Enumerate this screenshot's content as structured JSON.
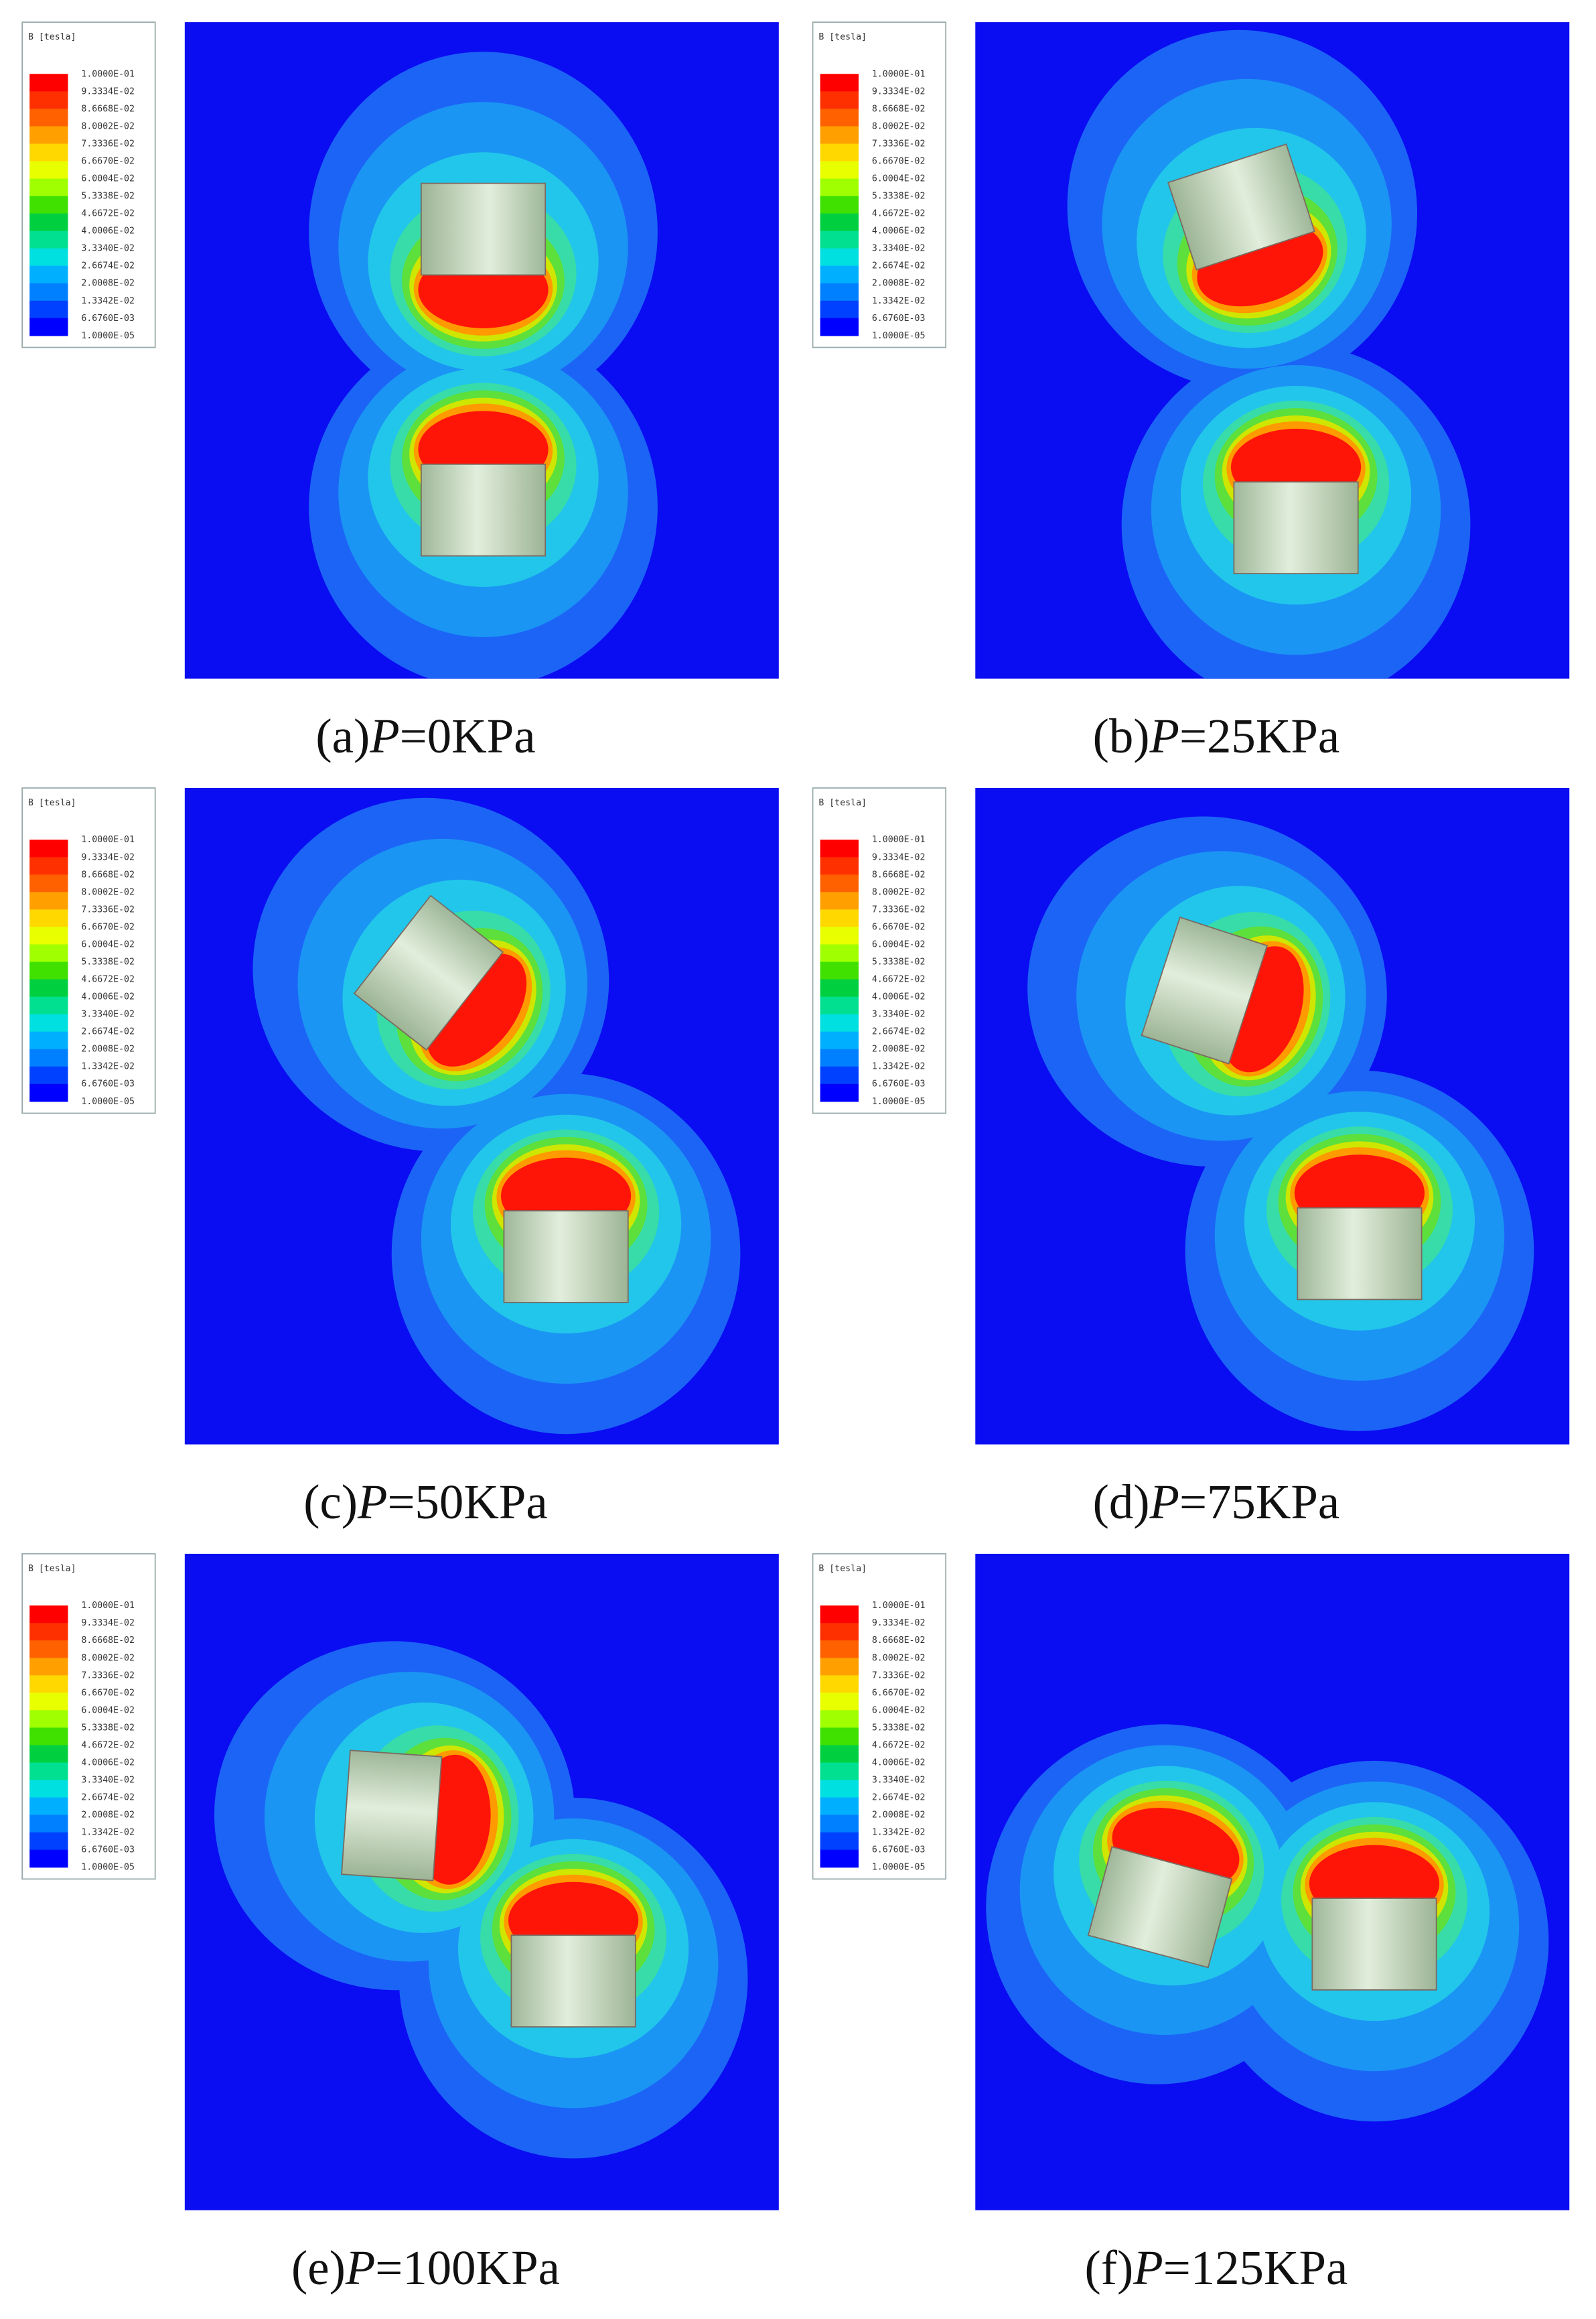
{
  "legend": {
    "title": "B [tesla]",
    "labels": [
      "1.0000E-01",
      "9.3334E-02",
      "8.6668E-02",
      "8.0002E-02",
      "7.3336E-02",
      "6.6670E-02",
      "6.0004E-02",
      "5.3338E-02",
      "4.6672E-02",
      "4.0006E-02",
      "3.3340E-02",
      "2.6674E-02",
      "2.0008E-02",
      "1.3342E-02",
      "6.6760E-03",
      "1.0000E-05"
    ]
  },
  "panels": [
    {
      "label": "(a)",
      "variable": "P",
      "value": "=0KPa"
    },
    {
      "label": "(b)",
      "variable": "P",
      "value": "=25KPa"
    },
    {
      "label": "(c)",
      "variable": "P",
      "value": "=50KPa"
    },
    {
      "label": "(d)",
      "variable": "P",
      "value": "=75KPa"
    },
    {
      "label": "(e)",
      "variable": "P",
      "value": "=100KPa"
    },
    {
      "label": "(f)",
      "variable": "P",
      "value": "=125KPa"
    }
  ]
}
